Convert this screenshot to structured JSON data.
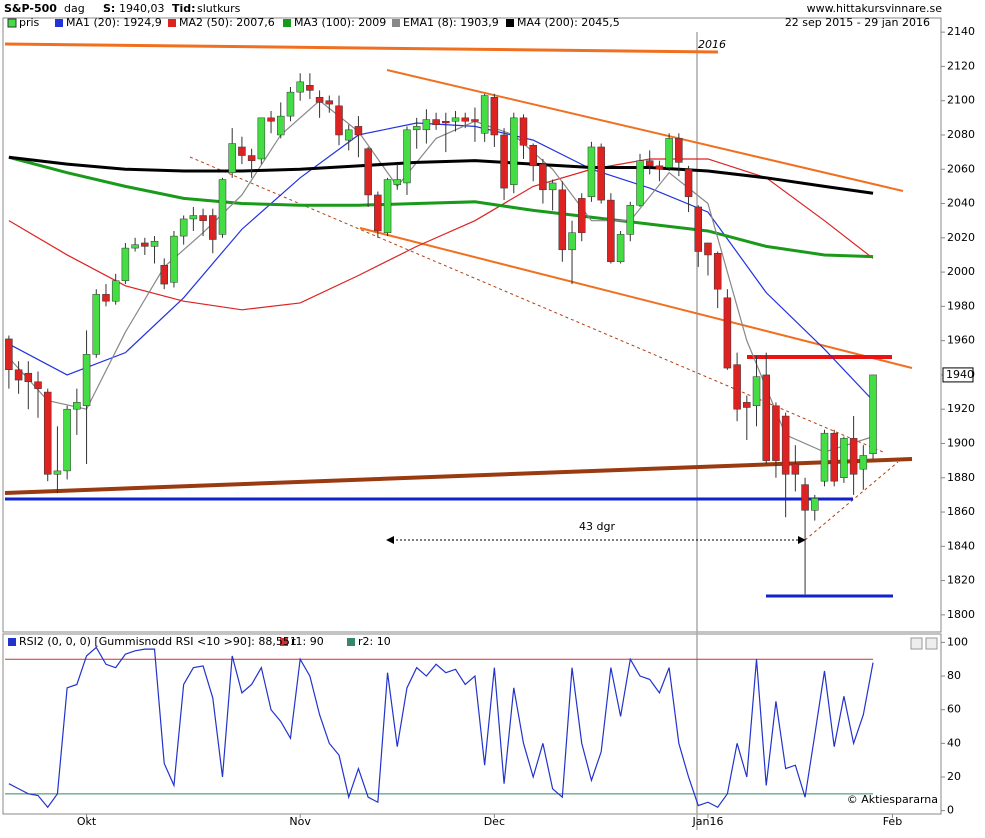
{
  "header": {
    "symbol": "S&P-500",
    "period": "dag",
    "s_label": "S:",
    "s_value": "1940,03",
    "time_label": "Tid:",
    "time_value": "slutkurs",
    "site": "www.hittakursvinnare.se",
    "date_range": "22 sep 2015 - 29 jan 2016",
    "copyright": "© Aktiespararna"
  },
  "chart_data": [
    {
      "type": "candlestick",
      "xlim": [
        -0.4,
        96
      ],
      "ylim": [
        1790,
        2150
      ],
      "yticks": [
        1800,
        1820,
        1840,
        1860,
        1880,
        1900,
        1920,
        1940,
        1960,
        1980,
        2000,
        2020,
        2040,
        2060,
        2080,
        2100,
        2120,
        2140
      ],
      "last_value_label": "1940",
      "annotations": {
        "year": "2016",
        "days": "43 dgr"
      },
      "candles": {
        "name": "pris",
        "up_color": "#44dd44",
        "down_color": "#dd2222",
        "values": [
          [
            1961,
            1963,
            1932,
            1943
          ],
          [
            1943,
            1948,
            1929,
            1937
          ],
          [
            1941,
            1948,
            1920,
            1936
          ],
          [
            1936,
            1942,
            1915,
            1932
          ],
          [
            1930,
            1932,
            1878,
            1882
          ],
          [
            1882,
            1910,
            1871,
            1884
          ],
          [
            1884,
            1922,
            1879,
            1920
          ],
          [
            1920,
            1932,
            1905,
            1924
          ],
          [
            1922,
            1966,
            1888,
            1952
          ],
          [
            1952,
            1990,
            1950,
            1987
          ],
          [
            1987,
            1993,
            1980,
            1983
          ],
          [
            1983,
            1999,
            1981,
            1995
          ],
          [
            1995,
            2017,
            1993,
            2014
          ],
          [
            2014,
            2020,
            2012,
            2016
          ],
          [
            2017,
            2020,
            2010,
            2015
          ],
          [
            2015,
            2021,
            2005,
            2018
          ],
          [
            2004,
            2008,
            1990,
            1993
          ],
          [
            1994,
            2024,
            1991,
            2021
          ],
          [
            2021,
            2033,
            2016,
            2031
          ],
          [
            2031,
            2038,
            2024,
            2033
          ],
          [
            2033,
            2037,
            2021,
            2030
          ],
          [
            2033,
            2037,
            2011,
            2019
          ],
          [
            2022,
            2055,
            2020,
            2054
          ],
          [
            2058,
            2084,
            2055,
            2075
          ],
          [
            2073,
            2079,
            2063,
            2068
          ],
          [
            2068,
            2072,
            2055,
            2065
          ],
          [
            2066,
            2090,
            2063,
            2090
          ],
          [
            2090,
            2094,
            2081,
            2088
          ],
          [
            2080,
            2099,
            2078,
            2091
          ],
          [
            2091,
            2108,
            2088,
            2105
          ],
          [
            2105,
            2116,
            2100,
            2111
          ],
          [
            2109,
            2116,
            2101,
            2106
          ],
          [
            2102,
            2106,
            2090,
            2099
          ],
          [
            2100,
            2103,
            2093,
            2098
          ],
          [
            2097,
            2103,
            2074,
            2080
          ],
          [
            2077,
            2086,
            2071,
            2083
          ],
          [
            2085,
            2091,
            2067,
            2080
          ],
          [
            2072,
            2073,
            2038,
            2045
          ],
          [
            2045,
            2047,
            2020,
            2024
          ],
          [
            2023,
            2055,
            2021,
            2054
          ],
          [
            2051,
            2063,
            2048,
            2054
          ],
          [
            2052,
            2085,
            2045,
            2083
          ],
          [
            2083,
            2090,
            2072,
            2085
          ],
          [
            2083,
            2095,
            2075,
            2089
          ],
          [
            2089,
            2093,
            2083,
            2086
          ],
          [
            2088,
            2093,
            2070,
            2087
          ],
          [
            2088,
            2094,
            2082,
            2090
          ],
          [
            2090,
            2093,
            2084,
            2088
          ],
          [
            2089,
            2096,
            2076,
            2088
          ],
          [
            2081,
            2104,
            2076,
            2103
          ],
          [
            2102,
            2104,
            2073,
            2080
          ],
          [
            2080,
            2084,
            2042,
            2049
          ],
          [
            2051,
            2093,
            2046,
            2090
          ],
          [
            2090,
            2092,
            2066,
            2074
          ],
          [
            2074,
            2075,
            2053,
            2062
          ],
          [
            2063,
            2066,
            2040,
            2048
          ],
          [
            2048,
            2054,
            2036,
            2052
          ],
          [
            2048,
            2053,
            2006,
            2013
          ],
          [
            2013,
            2030,
            1993,
            2023
          ],
          [
            2043,
            2046,
            2018,
            2023
          ],
          [
            2044,
            2076,
            2041,
            2073
          ],
          [
            2073,
            2075,
            2040,
            2042
          ],
          [
            2042,
            2046,
            2005,
            2006
          ],
          [
            2006,
            2024,
            2005,
            2022
          ],
          [
            2022,
            2041,
            2018,
            2039
          ],
          [
            2039,
            2069,
            2038,
            2065
          ],
          [
            2065,
            2071,
            2057,
            2062
          ],
          [
            2062,
            2065,
            2053,
            2060
          ],
          [
            2061,
            2081,
            2059,
            2078
          ],
          [
            2078,
            2081,
            2056,
            2064
          ],
          [
            2060,
            2062,
            2035,
            2044
          ],
          [
            2038,
            2039,
            2003,
            2012
          ],
          [
            2017,
            2017,
            1998,
            2010
          ],
          [
            2011,
            2012,
            1979,
            1990
          ],
          [
            1985,
            1990,
            1943,
            1944
          ],
          [
            1946,
            1953,
            1913,
            1920
          ],
          [
            1924,
            1928,
            1902,
            1921
          ],
          [
            1922,
            1951,
            1910,
            1939
          ],
          [
            1940,
            1953,
            1888,
            1890
          ],
          [
            1922,
            1924,
            1880,
            1890
          ],
          [
            1916,
            1918,
            1857,
            1882
          ],
          [
            1888,
            1899,
            1872,
            1882
          ],
          [
            1876,
            1880,
            1812,
            1861
          ],
          [
            1861,
            1870,
            1855,
            1868
          ],
          [
            1878,
            1908,
            1875,
            1906
          ],
          [
            1906,
            1908,
            1875,
            1878
          ],
          [
            1880,
            1904,
            1877,
            1903
          ],
          [
            1903,
            1916,
            1870,
            1882
          ],
          [
            1885,
            1899,
            1873,
            1893
          ],
          [
            1894,
            1940,
            1891,
            1940
          ]
        ]
      },
      "series": [
        {
          "name": "MA1 (20): 1924,9",
          "color": "#2233dd",
          "x": [
            0,
            6,
            12,
            18,
            24,
            30,
            36,
            42,
            48,
            54,
            60,
            66,
            72,
            78,
            84,
            89
          ],
          "values": [
            1958,
            1940,
            1953,
            1985,
            2025,
            2055,
            2080,
            2087,
            2085,
            2077,
            2060,
            2049,
            2035,
            1988,
            1955,
            1925
          ]
        },
        {
          "name": "MA2 (50): 2007,6",
          "color": "#dd2222",
          "x": [
            0,
            6,
            12,
            18,
            24,
            30,
            36,
            42,
            48,
            54,
            60,
            66,
            72,
            78,
            84,
            89
          ],
          "values": [
            2030,
            2010,
            1992,
            1983,
            1978,
            1982,
            1998,
            2015,
            2030,
            2050,
            2060,
            2066,
            2066,
            2055,
            2030,
            2008
          ]
        },
        {
          "name": "MA3 (100): 2009",
          "color": "#1a9a1a",
          "x": [
            0,
            6,
            12,
            18,
            24,
            30,
            36,
            42,
            48,
            54,
            60,
            66,
            72,
            78,
            84,
            89
          ],
          "values": [
            2067,
            2058,
            2050,
            2043,
            2040,
            2039,
            2039,
            2040,
            2041,
            2036,
            2032,
            2028,
            2024,
            2015,
            2010,
            2009
          ]
        },
        {
          "name": "EMA1 (8): 1903,9",
          "color": "#888888",
          "x": [
            0,
            4,
            8,
            12,
            16,
            20,
            24,
            28,
            32,
            36,
            40,
            44,
            48,
            52,
            56,
            60,
            64,
            68,
            72,
            76,
            80,
            84,
            89
          ],
          "values": [
            1950,
            1925,
            1920,
            1965,
            2003,
            2023,
            2045,
            2080,
            2100,
            2082,
            2050,
            2078,
            2088,
            2080,
            2060,
            2030,
            2030,
            2058,
            2040,
            1960,
            1905,
            1895,
            1904
          ]
        },
        {
          "name": "MA4 (200): 2045,5",
          "color": "#000000",
          "x": [
            0,
            6,
            12,
            18,
            24,
            30,
            36,
            42,
            48,
            54,
            60,
            66,
            72,
            78,
            84,
            89
          ],
          "values": [
            2067,
            2063,
            2060,
            2059,
            2059,
            2060,
            2062,
            2064,
            2065,
            2063,
            2061,
            2061,
            2059,
            2055,
            2050,
            2046
          ]
        }
      ]
    },
    {
      "type": "line",
      "xlim": [
        -0.4,
        96
      ],
      "ylim": [
        -2,
        105
      ],
      "yticks": [
        0,
        20,
        40,
        60,
        80,
        100
      ],
      "xticks": [
        {
          "value": 8,
          "label": "Okt"
        },
        {
          "value": 30,
          "label": "Nov"
        },
        {
          "value": 50,
          "label": "Dec"
        },
        {
          "value": 72,
          "label": "Jan16"
        },
        {
          "value": 91,
          "label": "Feb"
        }
      ],
      "series": [
        {
          "name": "RSI2 (0, 0, 0) [Gummisnodd RSI <10 >90]: 88,551",
          "color": "#2233cc",
          "values": [
            16,
            13,
            10,
            9,
            2,
            10,
            73,
            75,
            92,
            97,
            87,
            85,
            93,
            95,
            96,
            96,
            28,
            15,
            75,
            85,
            86,
            67,
            20,
            92,
            70,
            75,
            85,
            60,
            53,
            43,
            90,
            80,
            57,
            40,
            33,
            8,
            25,
            8,
            5,
            82,
            38,
            73,
            85,
            80,
            87,
            82,
            84,
            75,
            80,
            27,
            85,
            16,
            73,
            40,
            20,
            40,
            13,
            8,
            85,
            40,
            18,
            35,
            85,
            56,
            90,
            80,
            78,
            70,
            85,
            40,
            20,
            3,
            5,
            2,
            10,
            40,
            20,
            90,
            15,
            65,
            25,
            27,
            8,
            45,
            83,
            38,
            68,
            40,
            57,
            88
          ]
        }
      ],
      "levels": [
        {
          "label": "r1: 90",
          "value": 90,
          "color": "#cc3333"
        },
        {
          "label": "r2: 10",
          "value": 10,
          "color": "#338866"
        }
      ]
    }
  ]
}
